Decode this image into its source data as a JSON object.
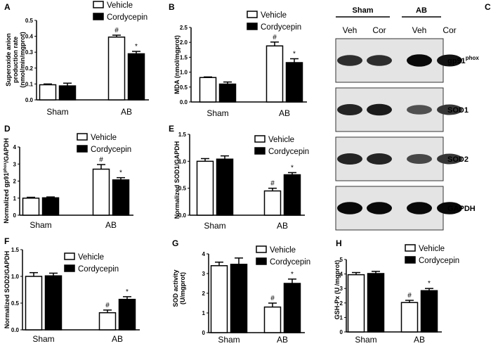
{
  "legend": [
    "Vehicle",
    "Cordycepin"
  ],
  "colors": {
    "vehicle": "#ffffff",
    "cordycepin": "#000000",
    "stroke": "#000000"
  },
  "chart_data": [
    {
      "panel": "A",
      "type": "bar",
      "categories": [
        "Sham",
        "AB"
      ],
      "ylabel": [
        "Superoxide anion",
        "production rate",
        "(nmol/min/mgprot)"
      ],
      "ylim": [
        0,
        0.5
      ],
      "yticks": [
        "0.0",
        "0.1",
        "0.2",
        "0.3",
        "0.4",
        "0.5"
      ],
      "series": [
        {
          "name": "Vehicle",
          "values": [
            0.095,
            0.395
          ],
          "errors": [
            0.005,
            0.012
          ],
          "marks": [
            "",
            "#"
          ]
        },
        {
          "name": "Cordycepin",
          "values": [
            0.088,
            0.29
          ],
          "errors": [
            0.017,
            0.015
          ],
          "marks": [
            "",
            "*"
          ]
        }
      ]
    },
    {
      "panel": "B",
      "type": "bar",
      "categories": [
        "Sham",
        "AB"
      ],
      "ylabel": [
        "MDA (nmol/mgprot)"
      ],
      "ylim": [
        0,
        2.5
      ],
      "yticks": [
        "0.0",
        "0.5",
        "1.0",
        "1.5",
        "2.0",
        "2.5"
      ],
      "series": [
        {
          "name": "Vehicle",
          "values": [
            0.82,
            1.88
          ],
          "errors": [
            0.02,
            0.13
          ],
          "marks": [
            "",
            "#"
          ]
        },
        {
          "name": "Cordycepin",
          "values": [
            0.6,
            1.32
          ],
          "errors": [
            0.07,
            0.13
          ],
          "marks": [
            "",
            "*"
          ]
        }
      ]
    },
    {
      "panel": "D",
      "type": "bar",
      "categories": [
        "Sham",
        "AB"
      ],
      "ylabel": [
        "Normalized gp91phox/GAPDH"
      ],
      "ylim": [
        0,
        4
      ],
      "yticks": [
        "0",
        "1",
        "2",
        "3",
        "4"
      ],
      "series": [
        {
          "name": "Vehicle",
          "values": [
            1.0,
            2.7
          ],
          "errors": [
            0.05,
            0.27
          ],
          "marks": [
            "",
            "#"
          ]
        },
        {
          "name": "Cordycepin",
          "values": [
            1.02,
            2.07
          ],
          "errors": [
            0.05,
            0.13
          ],
          "marks": [
            "",
            "*"
          ]
        }
      ]
    },
    {
      "panel": "E",
      "type": "bar",
      "categories": [
        "Sham",
        "AB"
      ],
      "ylabel": [
        "Normalized SOD1/GAPDH"
      ],
      "ylim": [
        0,
        1.5
      ],
      "yticks": [
        "0.0",
        "0.5",
        "1.0",
        "1.5"
      ],
      "series": [
        {
          "name": "Vehicle",
          "values": [
            1.0,
            0.45
          ],
          "errors": [
            0.05,
            0.05
          ],
          "marks": [
            "",
            "#"
          ]
        },
        {
          "name": "Cordycepin",
          "values": [
            1.04,
            0.75
          ],
          "errors": [
            0.06,
            0.04
          ],
          "marks": [
            "",
            "*"
          ]
        }
      ]
    },
    {
      "panel": "F",
      "type": "bar",
      "categories": [
        "Sham",
        "AB"
      ],
      "ylabel": [
        "Normalized SOD2/GAPDH"
      ],
      "ylim": [
        0,
        1.5
      ],
      "yticks": [
        "0.0",
        "0.5",
        "1.0",
        "1.5"
      ],
      "series": [
        {
          "name": "Vehicle",
          "values": [
            1.0,
            0.32
          ],
          "errors": [
            0.07,
            0.05
          ],
          "marks": [
            "",
            "#"
          ]
        },
        {
          "name": "Cordycepin",
          "values": [
            1.01,
            0.57
          ],
          "errors": [
            0.05,
            0.05
          ],
          "marks": [
            "",
            "*"
          ]
        }
      ]
    },
    {
      "panel": "G",
      "type": "bar",
      "categories": [
        "Sham",
        "AB"
      ],
      "ylabel": [
        "SOD activity",
        "(U/mgprot)"
      ],
      "ylim": [
        0,
        4
      ],
      "yticks": [
        "0",
        "1",
        "2",
        "3",
        "4"
      ],
      "series": [
        {
          "name": "Vehicle",
          "values": [
            3.4,
            1.3
          ],
          "errors": [
            0.18,
            0.2
          ],
          "marks": [
            "",
            "#"
          ]
        },
        {
          "name": "Cordycepin",
          "values": [
            3.47,
            2.5
          ],
          "errors": [
            0.32,
            0.22
          ],
          "marks": [
            "",
            "*"
          ]
        }
      ]
    },
    {
      "panel": "H",
      "type": "bar",
      "categories": [
        "Sham",
        "AB"
      ],
      "ylabel": [
        "GSH-Px (U /mgprot)"
      ],
      "ylim": [
        0,
        5
      ],
      "yticks": [
        "0",
        "1",
        "2",
        "3",
        "4",
        "5"
      ],
      "series": [
        {
          "name": "Vehicle",
          "values": [
            3.95,
            2.03
          ],
          "errors": [
            0.15,
            0.15
          ],
          "marks": [
            "",
            "#"
          ]
        },
        {
          "name": "Cordycepin",
          "values": [
            4.03,
            2.85
          ],
          "errors": [
            0.15,
            0.15
          ],
          "marks": [
            "",
            "*"
          ]
        }
      ]
    }
  ],
  "blot": {
    "panel": "C",
    "groups": [
      "Sham",
      "AB"
    ],
    "lanes": [
      "Veh",
      "Cor",
      "Veh",
      "Cor"
    ],
    "rows": [
      {
        "label": "gp91",
        "sup": "phox",
        "intensity": [
          0.75,
          0.75,
          0.95,
          0.9
        ]
      },
      {
        "label": "SOD1",
        "sup": "",
        "intensity": [
          0.8,
          0.85,
          0.55,
          0.7
        ]
      },
      {
        "label": "SOD2",
        "sup": "",
        "intensity": [
          0.8,
          0.8,
          0.6,
          0.7
        ]
      },
      {
        "label": "GAPDH",
        "sup": "",
        "intensity": [
          0.95,
          0.95,
          0.95,
          0.95
        ]
      }
    ]
  }
}
